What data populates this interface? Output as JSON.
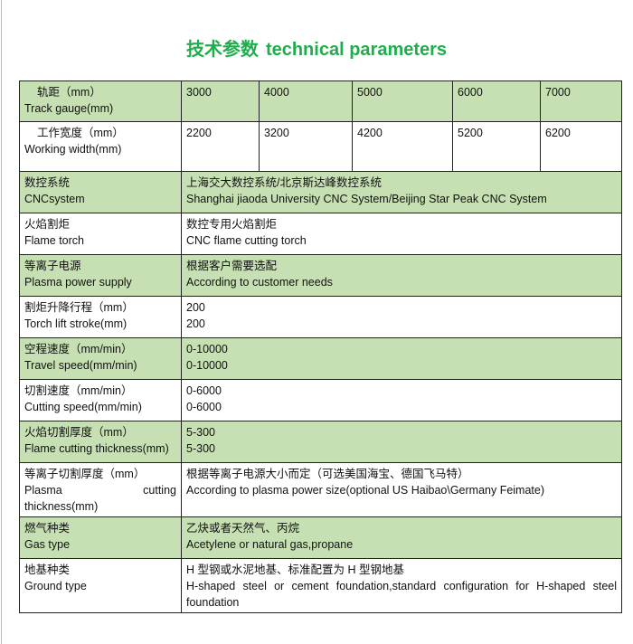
{
  "title": {
    "cn": "技术参数",
    "en": "technical parameters"
  },
  "colors": {
    "title": "#1fae4b",
    "row_highlight": "#c6e0b4"
  },
  "track": {
    "cn": "轨距（mm）",
    "en": "Track gauge(mm)",
    "values": [
      "3000",
      "4000",
      "5000",
      "6000",
      "7000"
    ]
  },
  "width": {
    "cn": "工作宽度（mm）",
    "en": "Working width(mm)",
    "values": [
      "2200",
      "3200",
      "4200",
      "5200",
      "6200"
    ]
  },
  "rows": [
    {
      "cn": "数控系统",
      "en": "CNCsystem",
      "vcn": "上海交大数控系统/北京斯达峰数控系统",
      "ven": "Shanghai jiaoda University CNC System/Beijing Star Peak CNC System"
    },
    {
      "cn": "火焰割炬",
      "en": "Flame torch",
      "vcn": "数控专用火焰割炬",
      "ven": "CNC flame cutting torch"
    },
    {
      "cn": "等离子电源",
      "en": "Plasma power supply",
      "vcn": "根据客户需要选配",
      "ven": "According to customer needs"
    },
    {
      "cn": "割炬升降行程（mm）",
      "en": "Torch lift stroke(mm)",
      "vcn": "200",
      "ven": "200"
    },
    {
      "cn": "空程速度（mm/min）",
      "en": "Travel speed(mm/min)",
      "vcn": "0-10000",
      "ven": "0-10000"
    },
    {
      "cn": "切割速度（mm/min）",
      "en": "Cutting speed(mm/min)",
      "vcn": "0-6000",
      "ven": "0-6000"
    },
    {
      "cn": "火焰切割厚度（mm）",
      "en": "Flame cutting thickness(mm)",
      "vcn": "5-300",
      "ven": "5-300"
    }
  ],
  "plasma": {
    "cn": "等离子切割厚度（mm）",
    "en1": "Plasma",
    "en2": "cutting",
    "en3": "thickness(mm)",
    "vcn": "根据等离子电源大小而定（可选美国海宝、德国飞马特）",
    "ven": "According to plasma power size(optional US Haibao\\Germany Feimate)"
  },
  "gas": {
    "cn": "燃气种类",
    "en": "Gas type",
    "vcn": "乙炔或者天然气、丙烷",
    "ven": "Acetylene or natural gas,propane"
  },
  "ground": {
    "cn": "地基种类",
    "en": "Ground type",
    "vcn": "H 型钢或水泥地基、标准配置为 H 型钢地基",
    "ven": "H-shaped steel or cement foundation,standard configuration for H-shaped steel foundation"
  }
}
